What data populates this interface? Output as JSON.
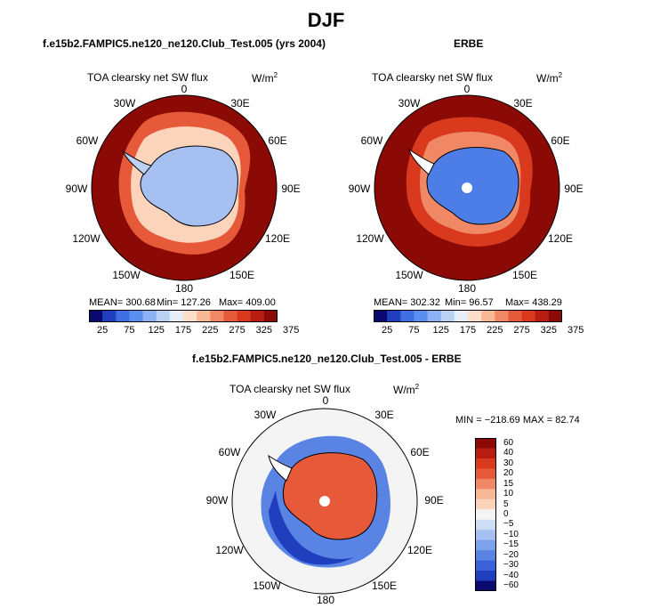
{
  "main_title": "DJF",
  "panels": [
    {
      "title": "f.e15b2.FAMPIC5.ne120_ne120.Club_Test.005 (yrs 2004)",
      "variable": "TOA clearsky net SW flux",
      "units": "W/m",
      "units_exp": "2",
      "mean_label": "MEAN= 300.68",
      "min_label": "Min= 127.26",
      "max_label": "Max= 409.00"
    },
    {
      "title": "ERBE",
      "variable": "TOA clearsky net SW flux",
      "units": "W/m",
      "units_exp": "2",
      "mean_label": "MEAN= 302.32",
      "min_label": "Min= 96.57",
      "max_label": "Max= 438.29"
    },
    {
      "title": "f.e15b2.FAMPIC5.ne120_ne120.Club_Test.005 - ERBE",
      "variable": "TOA clearsky net SW flux",
      "units": "W/m",
      "units_exp": "2",
      "minmax_label": "MIN = −218.69  MAX =  82.74"
    }
  ],
  "lon_labels": [
    "0",
    "30E",
    "60E",
    "90E",
    "120E",
    "150E",
    "180",
    "150W",
    "120W",
    "90W",
    "60W",
    "30W"
  ],
  "colorbar_abs": {
    "ticks": [
      "25",
      "75",
      "125",
      "175",
      "225",
      "275",
      "325",
      "375"
    ],
    "colors": [
      "#0a0a6e",
      "#1f3fbf",
      "#3d6fe0",
      "#5a8ff0",
      "#8cb0f2",
      "#bcd2f5",
      "#e6eefa",
      "#fce0cc",
      "#f8b896",
      "#f08866",
      "#e65a3a",
      "#d93a1e",
      "#b81c10",
      "#8b0a06"
    ]
  },
  "colorbar_diff": {
    "ticks": [
      "60",
      "40",
      "30",
      "20",
      "15",
      "10",
      "5",
      "0",
      "−5",
      "−10",
      "−15",
      "−20",
      "−30",
      "−40",
      "−60"
    ],
    "colors": [
      "#8b0a06",
      "#b81c10",
      "#d93a1e",
      "#e65a3a",
      "#f08866",
      "#f8b896",
      "#fcd4bc",
      "#f4f4f4",
      "#cfdcf6",
      "#a6c0f2",
      "#7ca2ec",
      "#5a84e4",
      "#3a62d8",
      "#1f3fbf",
      "#0a0a6e"
    ]
  },
  "colors": {
    "ocean_high": "#8b0a06",
    "land_model": "#a6c0f2",
    "land_obs": "#4d7ee8",
    "diff_land": "#e65a3a",
    "diff_neutral": "#f4f4f4"
  }
}
